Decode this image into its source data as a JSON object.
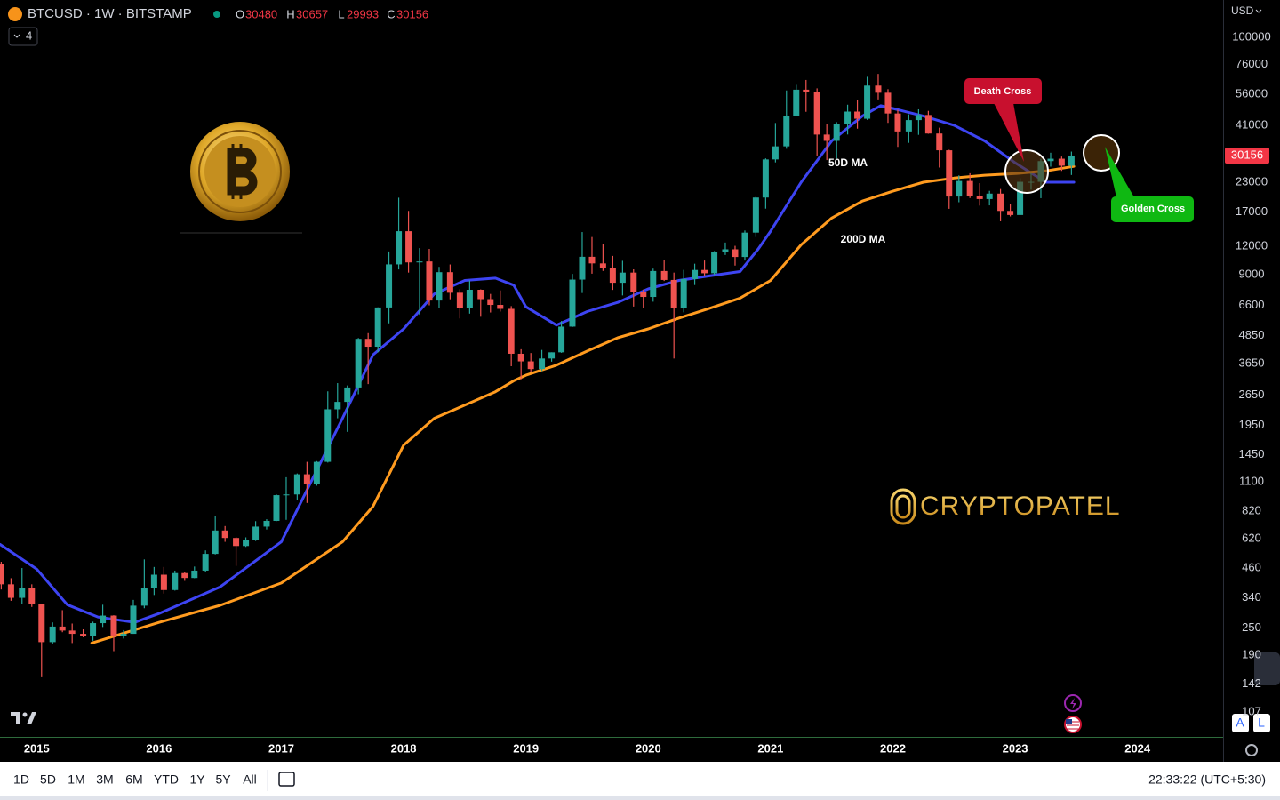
{
  "header": {
    "symbol": "BTCUSD · 1W · BITSTAMP",
    "ohlc": [
      {
        "label": "O",
        "value": 30480
      },
      {
        "label": "H",
        "value": 30657
      },
      {
        "label": "L",
        "value": 29993
      },
      {
        "label": "C",
        "value": 30156
      }
    ],
    "indicator_count": 4,
    "currency": "USD"
  },
  "chart_data": {
    "type": "candlestick",
    "log_scale": true,
    "grid": false,
    "up_color": "#26a69a",
    "down_color": "#ef5350",
    "x": [
      2014.71,
      2014.79,
      2014.88,
      2014.96,
      2015.04,
      2015.13,
      2015.21,
      2015.29,
      2015.38,
      2015.46,
      2015.54,
      2015.63,
      2015.71,
      2015.79,
      2015.88,
      2015.96,
      2016.04,
      2016.13,
      2016.21,
      2016.29,
      2016.38,
      2016.46,
      2016.54,
      2016.63,
      2016.71,
      2016.79,
      2016.88,
      2016.96,
      2017.04,
      2017.13,
      2017.21,
      2017.29,
      2017.38,
      2017.46,
      2017.54,
      2017.63,
      2017.71,
      2017.79,
      2017.88,
      2017.96,
      2018.04,
      2018.13,
      2018.21,
      2018.29,
      2018.38,
      2018.46,
      2018.54,
      2018.63,
      2018.71,
      2018.79,
      2018.88,
      2018.96,
      2019.04,
      2019.13,
      2019.21,
      2019.29,
      2019.38,
      2019.46,
      2019.54,
      2019.63,
      2019.71,
      2019.79,
      2019.88,
      2019.96,
      2020.04,
      2020.13,
      2020.21,
      2020.29,
      2020.38,
      2020.46,
      2020.54,
      2020.63,
      2020.71,
      2020.79,
      2020.88,
      2020.96,
      2021.04,
      2021.13,
      2021.21,
      2021.29,
      2021.38,
      2021.46,
      2021.54,
      2021.63,
      2021.71,
      2021.79,
      2021.88,
      2021.96,
      2022.04,
      2022.13,
      2022.21,
      2022.29,
      2022.38,
      2022.46,
      2022.54,
      2022.63,
      2022.71,
      2022.79,
      2022.88,
      2022.96,
      2023.04,
      2023.13,
      2023.21,
      2023.29,
      2023.38,
      2023.46
    ],
    "open": [
      480,
      390,
      340,
      375,
      320,
      217,
      254,
      244,
      236,
      230,
      263,
      284,
      230,
      236,
      314,
      377,
      430,
      368,
      437,
      416,
      448,
      531,
      673,
      624,
      575,
      609,
      700,
      742,
      963,
      970,
      1190,
      1080,
      1350,
      2300,
      2480,
      2870,
      4700,
      4340,
      6460,
      10000,
      14000,
      10200,
      10300,
      6930,
      9240,
      7500,
      6400,
      7730,
      7030,
      6630,
      6370,
      4040,
      3740,
      3460,
      3850,
      4100,
      5320,
      8570,
      10800,
      10100,
      9600,
      8300,
      9200,
      7550,
      7190,
      9350,
      8540,
      6420,
      8620,
      9450,
      9140,
      11350,
      11650,
      10780,
      13800,
      19700,
      28990,
      33100,
      45200,
      58800,
      57700,
      37300,
      35000,
      41500,
      47100,
      43800,
      61300,
      57000,
      46200,
      38500,
      43200,
      45500,
      37700,
      31800,
      19900,
      23300,
      20000,
      19400,
      20500,
      17200,
      16500,
      23100,
      23100,
      28500,
      29200,
      27200
    ],
    "high": [
      490,
      415,
      460,
      390,
      320,
      265,
      300,
      262,
      247,
      267,
      317,
      285,
      245,
      333,
      502,
      465,
      465,
      448,
      440,
      467,
      550,
      780,
      704,
      630,
      628,
      740,
      755,
      970,
      1155,
      1200,
      1350,
      1360,
      2760,
      2999,
      2930,
      4740,
      4980,
      6470,
      11400,
      19666,
      17200,
      11800,
      11700,
      9750,
      9990,
      7770,
      8500,
      7760,
      7410,
      7680,
      6550,
      4230,
      4070,
      4200,
      4100,
      5630,
      9080,
      13880,
      13200,
      12330,
      10900,
      10370,
      9510,
      7750,
      9580,
      10500,
      9200,
      9460,
      10070,
      10400,
      11440,
      12480,
      12070,
      14100,
      19850,
      29300,
      41950,
      58350,
      61780,
      64900,
      59600,
      41330,
      42320,
      50500,
      52920,
      67000,
      69000,
      59100,
      47990,
      45800,
      48190,
      47440,
      40000,
      31980,
      24670,
      25200,
      22790,
      21080,
      21480,
      18390,
      23960,
      25250,
      29190,
      31030,
      29840,
      31390
    ],
    "low": [
      370,
      330,
      320,
      310,
      152,
      212,
      240,
      215,
      228,
      220,
      253,
      198,
      225,
      236,
      306,
      350,
      355,
      366,
      404,
      415,
      440,
      528,
      600,
      470,
      570,
      605,
      680,
      740,
      750,
      920,
      890,
      1060,
      1340,
      2100,
      1830,
      2680,
      2970,
      4100,
      5500,
      9500,
      9200,
      6000,
      6600,
      6430,
      7020,
      5780,
      6070,
      5880,
      6140,
      6200,
      3560,
      3120,
      3350,
      3390,
      3730,
      4080,
      5300,
      7480,
      9100,
      9360,
      7720,
      7300,
      6520,
      6430,
      6850,
      8450,
      3850,
      6150,
      8110,
      8910,
      8980,
      11000,
      9880,
      10400,
      13200,
      17600,
      28130,
      32300,
      44950,
      47000,
      30000,
      28800,
      29280,
      37330,
      39600,
      43300,
      53260,
      42000,
      32920,
      34300,
      37200,
      37600,
      26700,
      17570,
      18780,
      19600,
      18150,
      18190,
      15480,
      16260,
      16500,
      21350,
      19570,
      26940,
      25810,
      24760
    ],
    "close": [
      390,
      340,
      375,
      320,
      217,
      254,
      244,
      236,
      230,
      263,
      284,
      230,
      236,
      314,
      377,
      430,
      368,
      437,
      416,
      448,
      531,
      673,
      624,
      575,
      609,
      700,
      742,
      963,
      970,
      1190,
      1080,
      1350,
      2300,
      2480,
      2870,
      4700,
      4340,
      6460,
      10000,
      14000,
      10200,
      10300,
      6930,
      9240,
      7500,
      6400,
      7730,
      7030,
      6630,
      6370,
      4040,
      3740,
      3460,
      3850,
      4100,
      5320,
      8570,
      10800,
      10100,
      9600,
      8300,
      9200,
      7550,
      7190,
      9350,
      8540,
      6420,
      8620,
      9450,
      9140,
      11350,
      11650,
      10780,
      13800,
      19700,
      28990,
      33100,
      45200,
      58800,
      57700,
      37300,
      35000,
      41500,
      47100,
      43800,
      61300,
      57000,
      46200,
      38500,
      43200,
      45500,
      37700,
      31800,
      19900,
      23300,
      20000,
      19400,
      20500,
      17200,
      16500,
      23100,
      23100,
      28500,
      29200,
      27200,
      30156
    ],
    "series": [
      {
        "name": "50D MA",
        "color": "#3d44f2",
        "x": [
          2014.7,
          2015.0,
          2015.25,
          2015.5,
          2015.8,
          2016.0,
          2016.5,
          2017.0,
          2017.5,
          2017.75,
          2018.0,
          2018.25,
          2018.5,
          2018.75,
          2018.9,
          2019.0,
          2019.25,
          2019.5,
          2019.75,
          2020.0,
          2020.25,
          2020.5,
          2020.75,
          2020.9,
          2021.0,
          2021.25,
          2021.5,
          2021.75,
          2021.9,
          2022.0,
          2022.25,
          2022.5,
          2022.75,
          2023.0,
          2023.25,
          2023.48
        ],
        "values": [
          585,
          455,
          317,
          280,
          265,
          290,
          380,
          600,
          2100,
          4000,
          5200,
          7400,
          8500,
          8700,
          8100,
          6500,
          5400,
          6200,
          6800,
          7800,
          8500,
          8900,
          9300,
          11700,
          14000,
          23000,
          35000,
          45000,
          50000,
          48600,
          45000,
          41000,
          35000,
          28000,
          23000,
          23000
        ]
      },
      {
        "name": "200D MA",
        "color": "#ff9b1f",
        "x": [
          2015.45,
          2016.0,
          2016.5,
          2017.0,
          2017.5,
          2017.75,
          2018.0,
          2018.25,
          2018.5,
          2018.75,
          2018.9,
          2019.0,
          2019.25,
          2019.5,
          2019.75,
          2020.0,
          2020.25,
          2020.5,
          2020.75,
          2021.0,
          2021.25,
          2021.5,
          2021.75,
          2022.0,
          2022.25,
          2022.5,
          2022.75,
          2023.0,
          2023.25,
          2023.48
        ],
        "values": [
          215,
          265,
          315,
          395,
          600,
          860,
          1600,
          2100,
          2400,
          2750,
          3070,
          3250,
          3600,
          4150,
          4750,
          5200,
          5800,
          6400,
          7100,
          8500,
          12200,
          16000,
          19000,
          21000,
          23000,
          24000,
          24700,
          25100,
          25800,
          27000
        ]
      }
    ],
    "xlim": [
      2014.7,
      2024.7
    ],
    "xticks": [
      2015,
      2016,
      2017,
      2018,
      2019,
      2020,
      2021,
      2022,
      2023,
      2024
    ],
    "ylim": [
      83,
      146000
    ],
    "yticks": [
      100000,
      76000,
      56000,
      41000,
      23000,
      17000,
      12000,
      9000,
      6600,
      4850,
      3650,
      2650,
      1950,
      1450,
      1100,
      820,
      620,
      460,
      340,
      250,
      190,
      142,
      107
    ],
    "last_price": 30156,
    "annotations": [
      "Death Cross",
      "Golden Cross"
    ]
  },
  "watermark": "CRYPTOPATEL",
  "toolbar": {
    "ranges": [
      "1D",
      "5D",
      "1M",
      "3M",
      "6M",
      "YTD",
      "1Y",
      "5Y",
      "All"
    ],
    "clock": "22:33:22 (UTC+5:30)"
  },
  "badges": [
    "A",
    "L"
  ]
}
